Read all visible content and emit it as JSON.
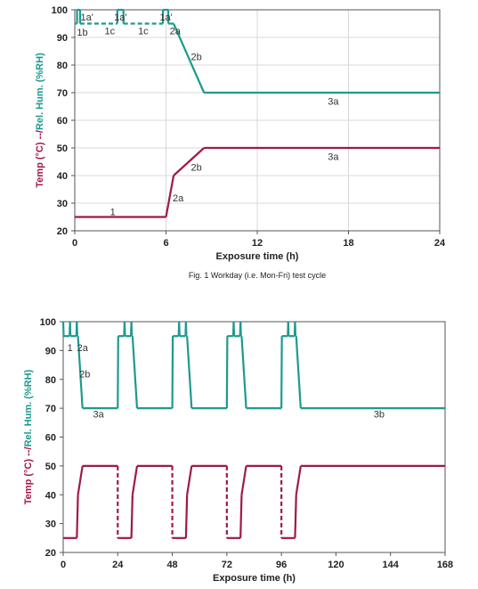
{
  "colors": {
    "temp": "#a0184a",
    "rh": "#1e9a8e",
    "grid": "#d8d8d8",
    "axis": "#555555"
  },
  "chart_data": [
    {
      "type": "line",
      "xlabel": "Exposure time (h)",
      "ylabel": "Temp (°C) --/Rel. Hum. (%RH)",
      "xlim": [
        0,
        24
      ],
      "ylim": [
        20,
        100
      ],
      "xticks": [
        0,
        6,
        12,
        18,
        24
      ],
      "yticks": [
        20,
        30,
        40,
        50,
        60,
        70,
        80,
        90,
        100
      ],
      "grid": true,
      "caption": "Fig. 1  Workday (i.e. Mon-Fri) test cycle",
      "series": [
        {
          "role": "rh",
          "points": [
            [
              0,
              95
            ],
            [
              0.15,
              95
            ],
            [
              0.15,
              100
            ],
            [
              0.35,
              100
            ],
            [
              0.35,
              95
            ],
            [
              2.8,
              95
            ],
            [
              2.8,
              100
            ],
            [
              3.2,
              100
            ],
            [
              3.2,
              95
            ],
            [
              5.8,
              95
            ],
            [
              5.8,
              100
            ],
            [
              6.15,
              100
            ],
            [
              6.15,
              95
            ],
            [
              6.5,
              95
            ],
            [
              8.5,
              70
            ],
            [
              24,
              70
            ]
          ],
          "dashed_segments": [
            [
              0.35,
              2.8
            ],
            [
              3.2,
              5.8
            ]
          ]
        },
        {
          "role": "temp",
          "points": [
            [
              0,
              25
            ],
            [
              6,
              25
            ],
            [
              6.5,
              40
            ],
            [
              8.5,
              50
            ],
            [
              24,
              50
            ]
          ]
        }
      ],
      "annotations": [
        {
          "text": "1a'",
          "x": 0.8,
          "y": 97.5
        },
        {
          "text": "1a'",
          "x": 3.0,
          "y": 97.5
        },
        {
          "text": "1a'",
          "x": 6.0,
          "y": 97.5
        },
        {
          "text": "1b",
          "x": 0.5,
          "y": 92
        },
        {
          "text": "1c",
          "x": 2.3,
          "y": 92.5
        },
        {
          "text": "1c",
          "x": 4.5,
          "y": 92.5
        },
        {
          "text": "2a",
          "x": 6.6,
          "y": 92.5
        },
        {
          "text": "2b",
          "x": 8.0,
          "y": 83
        },
        {
          "text": "3a",
          "x": 17.0,
          "y": 67
        },
        {
          "text": "2b",
          "x": 8.0,
          "y": 43
        },
        {
          "text": "3a",
          "x": 17.0,
          "y": 47
        },
        {
          "text": "2a",
          "x": 6.8,
          "y": 32
        },
        {
          "text": "1",
          "x": 2.5,
          "y": 27
        }
      ]
    },
    {
      "type": "line",
      "xlabel": "Exposure time (h)",
      "ylabel": "Temp (°C) --/Rel. Hum. (%RH)",
      "xlim": [
        0,
        168
      ],
      "ylim": [
        20,
        100
      ],
      "xticks": [
        0,
        24,
        48,
        72,
        96,
        120,
        144,
        168
      ],
      "yticks": [
        20,
        30,
        40,
        50,
        60,
        70,
        80,
        90,
        100
      ],
      "grid": false,
      "series": [
        {
          "role": "rh",
          "points": [
            [
              0,
              100
            ],
            [
              0.2,
              95
            ],
            [
              2.8,
              95
            ],
            [
              3,
              100
            ],
            [
              3.2,
              95
            ],
            [
              5.8,
              95
            ],
            [
              6,
              100
            ],
            [
              6.2,
              95
            ],
            [
              6.5,
              95
            ],
            [
              8.5,
              70
            ],
            [
              24,
              70
            ],
            [
              24.2,
              95
            ],
            [
              26.8,
              95
            ],
            [
              27,
              100
            ],
            [
              27.2,
              95
            ],
            [
              29.8,
              95
            ],
            [
              30,
              100
            ],
            [
              30.2,
              95
            ],
            [
              30.5,
              95
            ],
            [
              32.5,
              70
            ],
            [
              48,
              70
            ],
            [
              48.2,
              95
            ],
            [
              50.8,
              95
            ],
            [
              51,
              100
            ],
            [
              51.2,
              95
            ],
            [
              53.8,
              95
            ],
            [
              54,
              100
            ],
            [
              54.2,
              95
            ],
            [
              54.5,
              95
            ],
            [
              56.5,
              70
            ],
            [
              72,
              70
            ],
            [
              72.2,
              95
            ],
            [
              74.8,
              95
            ],
            [
              75,
              100
            ],
            [
              75.2,
              95
            ],
            [
              77.8,
              95
            ],
            [
              78,
              100
            ],
            [
              78.2,
              95
            ],
            [
              78.5,
              95
            ],
            [
              80.5,
              70
            ],
            [
              96,
              70
            ],
            [
              96.2,
              95
            ],
            [
              98.8,
              95
            ],
            [
              99,
              100
            ],
            [
              99.2,
              95
            ],
            [
              101.8,
              95
            ],
            [
              102,
              100
            ],
            [
              102.2,
              95
            ],
            [
              102.5,
              95
            ],
            [
              104.5,
              70
            ],
            [
              168,
              70
            ]
          ]
        },
        {
          "role": "temp",
          "points": [
            [
              0,
              25
            ],
            [
              6,
              25
            ],
            [
              6.5,
              40
            ],
            [
              8.5,
              50
            ],
            [
              24,
              50
            ],
            [
              24,
              25
            ],
            [
              30,
              25
            ],
            [
              30.5,
              40
            ],
            [
              32.5,
              50
            ],
            [
              48,
              50
            ],
            [
              48,
              25
            ],
            [
              54,
              25
            ],
            [
              54.5,
              40
            ],
            [
              56.5,
              50
            ],
            [
              72,
              50
            ],
            [
              72,
              25
            ],
            [
              78,
              25
            ],
            [
              78.5,
              40
            ],
            [
              80.5,
              50
            ],
            [
              96,
              50
            ],
            [
              96,
              25
            ],
            [
              102,
              25
            ],
            [
              102.5,
              40
            ],
            [
              104.5,
              50
            ],
            [
              168,
              50
            ]
          ],
          "dashed_drops": [
            24,
            48,
            72,
            96
          ]
        }
      ],
      "annotations": [
        {
          "text": "1",
          "x": 3,
          "y": 91
        },
        {
          "text": "2a",
          "x": 8.5,
          "y": 91
        },
        {
          "text": "2b",
          "x": 9.5,
          "y": 82
        },
        {
          "text": "3a",
          "x": 15.5,
          "y": 68
        },
        {
          "text": "3b",
          "x": 139,
          "y": 68
        }
      ]
    }
  ]
}
